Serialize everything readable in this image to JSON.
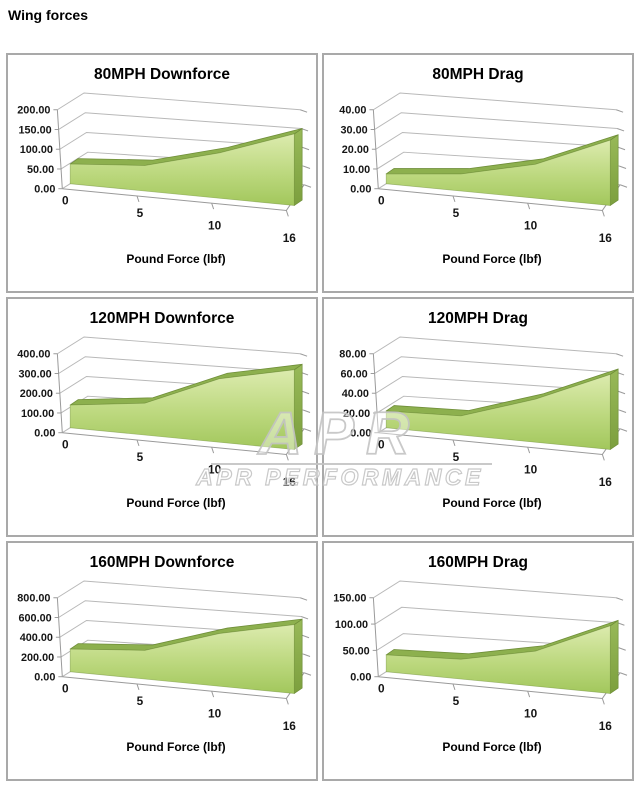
{
  "page": {
    "title": "Wing forces"
  },
  "x_axis": {
    "title": "Pound Force (lbf)",
    "labels": [
      "0",
      "5",
      "10",
      "16"
    ]
  },
  "watermark": {
    "logo": "APR",
    "wordmark": "APR PERFORMANCE"
  },
  "colors": {
    "area_top": "#dcebae",
    "area_mid": "#bcd87e",
    "area_bottom": "#a2c75c",
    "ridge": "#8db04e",
    "ridge_edge": "#6f8e39",
    "side_top": "#98b958",
    "side_bottom": "#7c9f3e",
    "gridline": "#b8b8b8",
    "axis": "#9a9a9a",
    "panel_border": "#a9a9a9",
    "watermark_gray": "#c4c4c4"
  },
  "chart_data": [
    {
      "type": "area",
      "title": "80MPH Downforce",
      "x": [
        0,
        5,
        10,
        16
      ],
      "values": [
        50,
        60,
        100,
        148
      ],
      "xlabel": "Pound Force (lbf)",
      "ylim": [
        0,
        200
      ],
      "yticks": [
        0,
        50,
        100,
        150,
        200
      ],
      "ytick_format": "0.00",
      "legend": "none",
      "grid": "back-wall-3d"
    },
    {
      "type": "area",
      "title": "80MPH Drag",
      "x": [
        0,
        5,
        10,
        16
      ],
      "values": [
        5,
        8,
        15,
        27
      ],
      "xlabel": "Pound Force (lbf)",
      "ylim": [
        0,
        40
      ],
      "yticks": [
        0,
        10,
        20,
        30,
        40
      ],
      "ytick_format": "0.00",
      "legend": "none",
      "grid": "back-wall-3d"
    },
    {
      "type": "area",
      "title": "120MPH Downforce",
      "x": [
        0,
        5,
        10,
        16
      ],
      "values": [
        115,
        150,
        280,
        330
      ],
      "xlabel": "Pound Force (lbf)",
      "ylim": [
        0,
        400
      ],
      "yticks": [
        0,
        100,
        200,
        300,
        400
      ],
      "ytick_format": "0.00",
      "legend": "none",
      "grid": "back-wall-3d"
    },
    {
      "type": "area",
      "title": "120MPH Drag",
      "x": [
        0,
        5,
        10,
        16
      ],
      "values": [
        17,
        18,
        38,
        62
      ],
      "xlabel": "Pound Force (lbf)",
      "ylim": [
        0,
        80
      ],
      "yticks": [
        0,
        20,
        40,
        60,
        80
      ],
      "ytick_format": "0.00",
      "legend": "none",
      "grid": "back-wall-3d"
    },
    {
      "type": "area",
      "title": "160MPH Downforce",
      "x": [
        0,
        5,
        10,
        16
      ],
      "values": [
        230,
        270,
        465,
        570
      ],
      "xlabel": "Pound Force (lbf)",
      "ylim": [
        0,
        800
      ],
      "yticks": [
        0,
        200,
        400,
        600,
        800
      ],
      "ytick_format": "0.00",
      "legend": "none",
      "grid": "back-wall-3d"
    },
    {
      "type": "area",
      "title": "160MPH Drag",
      "x": [
        0,
        5,
        10,
        16
      ],
      "values": [
        32,
        35,
        58,
        105
      ],
      "xlabel": "Pound Force (lbf)",
      "ylim": [
        0,
        150
      ],
      "yticks": [
        0,
        50,
        100,
        150
      ],
      "ytick_format": "0.00",
      "legend": "none",
      "grid": "back-wall-3d"
    }
  ]
}
